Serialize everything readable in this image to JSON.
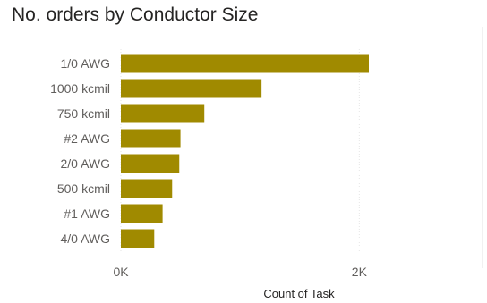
{
  "chart_data": {
    "type": "bar",
    "orientation": "horizontal",
    "title": "No. orders by Conductor Size",
    "xlabel": "Count of Task",
    "ylabel": "",
    "categories": [
      "1/0 AWG",
      "1000 kcmil",
      "750 kcmil",
      "#2 AWG",
      "2/0 AWG",
      "500 kcmil",
      "#1 AWG",
      "4/0 AWG"
    ],
    "values": [
      2080,
      1180,
      700,
      500,
      490,
      430,
      350,
      280
    ],
    "xlim": [
      0,
      2080
    ],
    "xticks": [
      {
        "value": 0,
        "label": "0K"
      },
      {
        "value": 2000,
        "label": "2K"
      }
    ],
    "grid": true,
    "bar_color": "#a08a00"
  }
}
